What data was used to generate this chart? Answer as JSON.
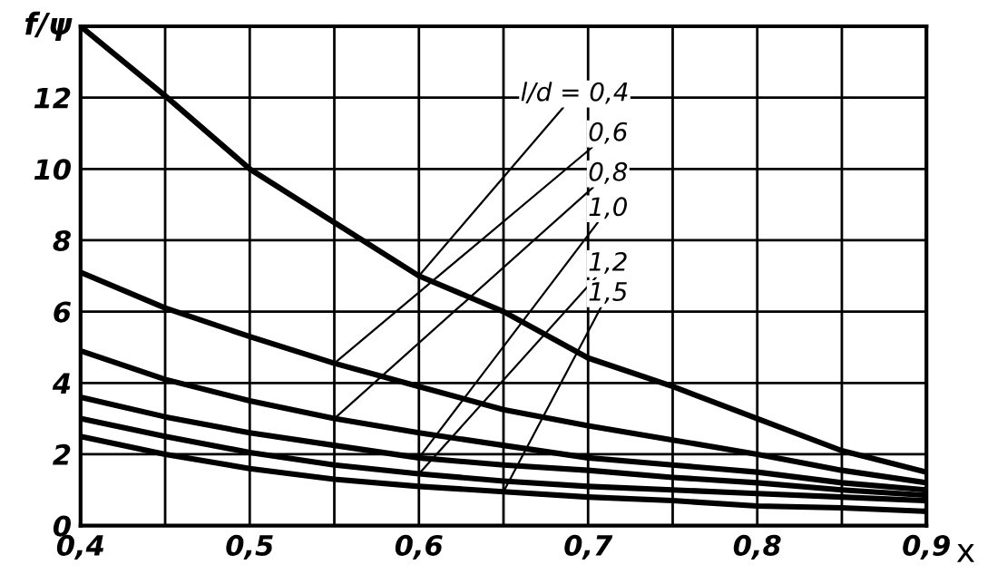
{
  "chart_data": {
    "type": "line",
    "ylabel": "f/ψ",
    "xlabel": "x",
    "legend_title": "l/d =",
    "x": [
      0.4,
      0.45,
      0.5,
      0.55,
      0.6,
      0.65,
      0.7,
      0.75,
      0.8,
      0.85,
      0.9
    ],
    "series": [
      {
        "name": "0,4",
        "color": "#000000",
        "values": [
          14,
          12.05,
          10,
          8.5,
          7.0,
          6.0,
          4.7,
          3.9,
          3.0,
          2.1,
          1.5
        ]
      },
      {
        "name": "0,6",
        "color": "#000000",
        "values": [
          7.1,
          6.1,
          5.3,
          4.55,
          3.9,
          3.25,
          2.8,
          2.4,
          2.0,
          1.55,
          1.2
        ]
      },
      {
        "name": "0,8",
        "color": "#000000",
        "values": [
          4.9,
          4.1,
          3.5,
          3.0,
          2.6,
          2.25,
          1.9,
          1.7,
          1.5,
          1.2,
          1.0
        ]
      },
      {
        "name": "1,0",
        "color": "#000000",
        "values": [
          3.6,
          3.05,
          2.6,
          2.25,
          1.9,
          1.7,
          1.55,
          1.35,
          1.2,
          1.0,
          0.85
        ]
      },
      {
        "name": "1,2",
        "color": "#000000",
        "values": [
          3.0,
          2.5,
          2.05,
          1.7,
          1.45,
          1.25,
          1.1,
          1.0,
          0.9,
          0.8,
          0.7
        ]
      },
      {
        "name": "1,5",
        "color": "#000000",
        "values": [
          2.5,
          2.0,
          1.6,
          1.3,
          1.1,
          0.95,
          0.8,
          0.7,
          0.55,
          0.5,
          0.4
        ]
      }
    ],
    "xlim": [
      0.4,
      0.9
    ],
    "ylim": [
      0,
      14
    ],
    "xticks": [
      {
        "value": 0.4,
        "label": "0,4"
      },
      {
        "value": 0.45,
        "label": null
      },
      {
        "value": 0.5,
        "label": "0,5"
      },
      {
        "value": 0.55,
        "label": null
      },
      {
        "value": 0.6,
        "label": "0,6"
      },
      {
        "value": 0.65,
        "label": null
      },
      {
        "value": 0.7,
        "label": "0,7"
      },
      {
        "value": 0.75,
        "label": null
      },
      {
        "value": 0.8,
        "label": "0,8"
      },
      {
        "value": 0.85,
        "label": null
      },
      {
        "value": 0.9,
        "label": "0,9"
      }
    ],
    "yticks": [
      0,
      2,
      4,
      6,
      8,
      10,
      12,
      {
        "value": 14,
        "label": null
      }
    ],
    "grid": true,
    "legend": false,
    "marker": "none",
    "line_style": "solid"
  }
}
